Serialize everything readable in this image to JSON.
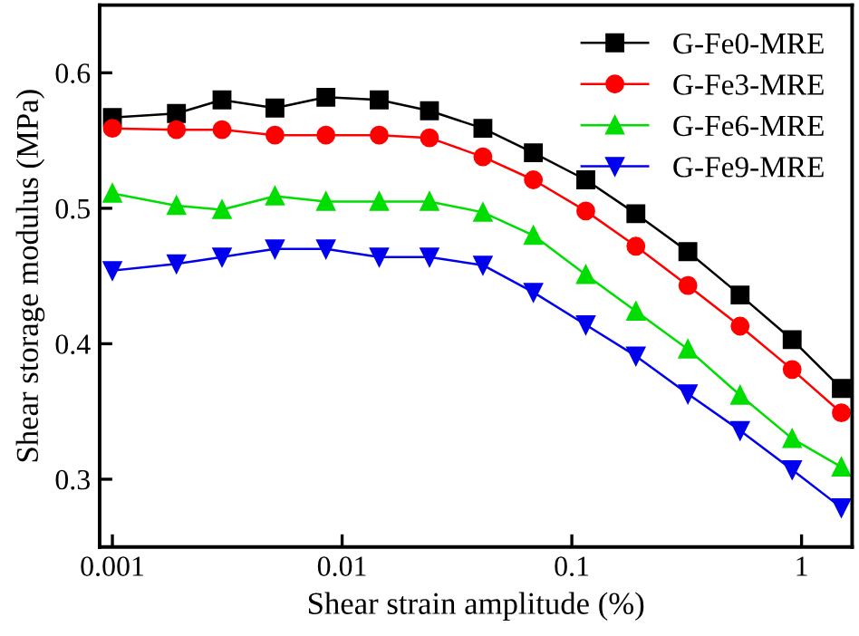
{
  "chart_data": {
    "type": "line",
    "xlabel": "Shear strain amplitude (%)",
    "ylabel": "Shear storage modulus (MPa)",
    "log": "x",
    "xlim": [
      0.00088,
      1.66
    ],
    "xticks": [
      0.001,
      0.01,
      0.1,
      1
    ],
    "ylim": [
      0.25,
      0.65
    ],
    "yticks": [
      0.3,
      0.4,
      0.5,
      0.6
    ],
    "grid": false,
    "legend": "top right",
    "line_style": "solid",
    "x": [
      0.001,
      0.0019,
      0.003,
      0.0051,
      0.0085,
      0.0145,
      0.024,
      0.041,
      0.068,
      0.115,
      0.19,
      0.32,
      0.54,
      0.91,
      1.49
    ],
    "series": [
      {
        "name": "G-Fe0-MRE",
        "color": "#000000",
        "marker": "square",
        "values": [
          0.567,
          0.57,
          0.58,
          0.574,
          0.582,
          0.58,
          0.572,
          0.559,
          0.541,
          0.521,
          0.496,
          0.468,
          0.436,
          0.403,
          0.367
        ]
      },
      {
        "name": "G-Fe3-MRE",
        "color": "#ff0000",
        "marker": "circle",
        "values": [
          0.559,
          0.558,
          0.558,
          0.554,
          0.554,
          0.554,
          0.552,
          0.538,
          0.521,
          0.498,
          0.472,
          0.443,
          0.413,
          0.381,
          0.349
        ]
      },
      {
        "name": "G-Fe6-MRE",
        "color": "#00dd00",
        "marker": "triangle",
        "values": [
          0.511,
          0.502,
          0.499,
          0.509,
          0.505,
          0.505,
          0.505,
          0.497,
          0.48,
          0.451,
          0.424,
          0.396,
          0.362,
          0.33,
          0.309
        ]
      },
      {
        "name": "G-Fe9-MRE",
        "color": "#0000ee",
        "marker": "triangle_down",
        "values": [
          0.454,
          0.459,
          0.464,
          0.47,
          0.47,
          0.464,
          0.464,
          0.458,
          0.438,
          0.414,
          0.391,
          0.363,
          0.336,
          0.307,
          0.279
        ]
      }
    ]
  }
}
